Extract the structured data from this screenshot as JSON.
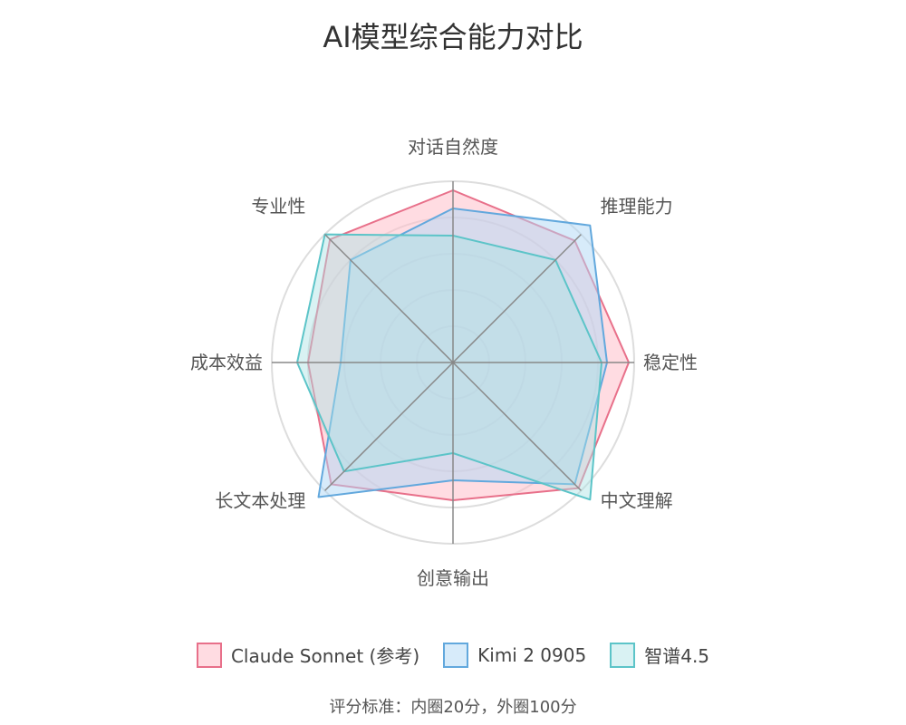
{
  "chart_data": {
    "type": "radar",
    "title": "AI模型综合能力对比",
    "axes": [
      "对话自然度",
      "推理能力",
      "稳定性",
      "中文理解",
      "创意输出",
      "长文本处理",
      "成本效益",
      "专业性"
    ],
    "range": [
      0,
      100
    ],
    "rings": [
      20,
      40,
      60,
      80,
      100
    ],
    "series": [
      {
        "name": "Claude Sonnet (参考)",
        "values": [
          95,
          95,
          97,
          98,
          76,
          95,
          80,
          96
        ],
        "color": "#e8708a",
        "fill": "rgba(255,192,203,0.55)"
      },
      {
        "name": "Kimi 2 0905",
        "values": [
          85,
          107,
          85,
          95,
          65,
          105,
          62,
          80
        ],
        "color": "#62a8dd",
        "fill": "rgba(176,216,246,0.5)"
      },
      {
        "name": "智谱4.5",
        "values": [
          70,
          80,
          82,
          107,
          50,
          85,
          86,
          100
        ],
        "color": "#5cc4c8",
        "fill": "rgba(170,226,228,0.45)"
      }
    ],
    "footnote": "评分标准：内圈20分，外圈100分"
  }
}
